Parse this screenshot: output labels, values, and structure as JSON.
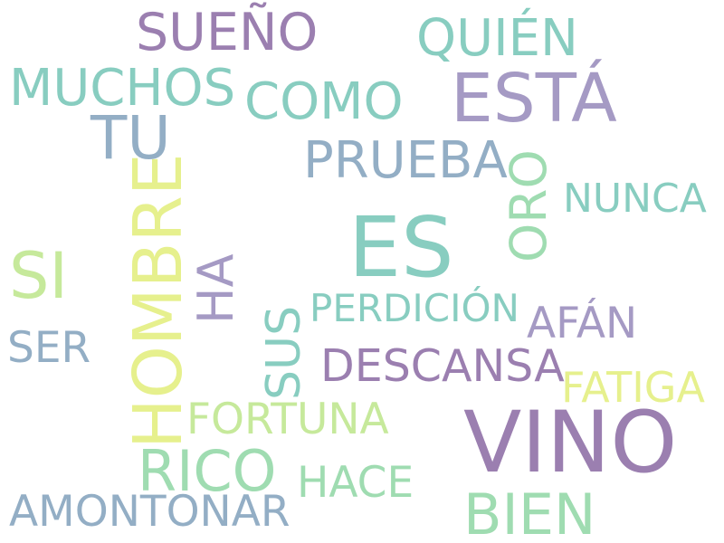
{
  "palette": {
    "purple": "#9b7fb0",
    "lavender": "#a59ac4",
    "blue_gray": "#93aec5",
    "teal": "#88cdc0",
    "mint": "#9fdcb1",
    "light_green": "#c6e99b",
    "yellow": "#e6f08d"
  },
  "words": {
    "sueno": "SUEÑO",
    "quien": "QUIÉN",
    "muchos": "MUCHOS",
    "esta": "ESTÁ",
    "como": "COMO",
    "tu": "TU",
    "prueba": "PRUEBA",
    "oro": "ORO",
    "nunca": "NUNCA",
    "es": "ES",
    "hombre": "HOMBRE",
    "si": "SI",
    "ha": "HA",
    "perdicion": "PERDICIÓN",
    "afan": "AFÁN",
    "ser": "SER",
    "sus": "SUS",
    "descansa": "DESCANSA",
    "fatiga": "FATIGA",
    "fortuna": "FORTUNA",
    "vino": "VINO",
    "rico": "RICO",
    "hace": "HACE",
    "amontonar": "AMONTONAR",
    "bien": "BIEN"
  }
}
